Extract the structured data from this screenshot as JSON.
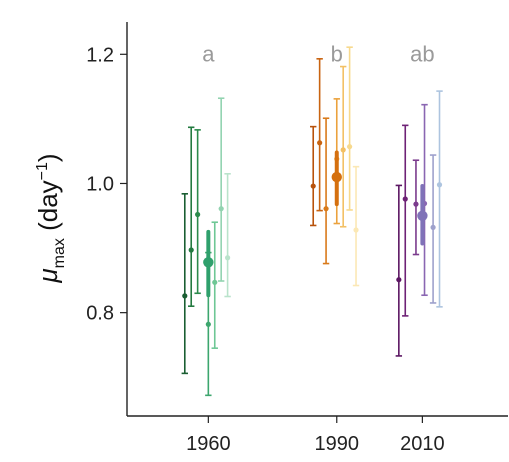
{
  "chart_data": {
    "type": "scatter",
    "ylabel": {
      "symbol": "μ",
      "subscript": "max",
      "unit_open": " (day",
      "unit_sup": "−1",
      "unit_close": ")"
    },
    "xlabel": "",
    "ylim": [
      0.64,
      1.25
    ],
    "yticks": [
      0.8,
      1.0,
      1.2
    ],
    "ytick_labels": [
      "0.8",
      "1.0",
      "1.2"
    ],
    "xlim": [
      1941,
      2030
    ],
    "xticks": [
      1960,
      1990,
      2010
    ],
    "xtick_labels": [
      "1960",
      "1990",
      "2010"
    ],
    "grid": false,
    "groups": [
      {
        "year": 1960,
        "letter": "a",
        "replicates": [
          {
            "x": 1954.5,
            "y": 0.826,
            "lo": 0.706,
            "hi": 0.984,
            "color": "#1a5e32"
          },
          {
            "x": 1956.0,
            "y": 0.897,
            "lo": 0.81,
            "hi": 1.087,
            "color": "#237a40"
          },
          {
            "x": 1957.5,
            "y": 0.952,
            "lo": 0.83,
            "hi": 1.083,
            "color": "#2b8a4b"
          },
          {
            "x": 1960.0,
            "y": 0.782,
            "lo": 0.672,
            "hi": 0.893,
            "color": "#3da66e"
          },
          {
            "x": 1961.5,
            "y": 0.847,
            "lo": 0.745,
            "hi": 0.94,
            "color": "#6ec795"
          },
          {
            "x": 1963.0,
            "y": 0.961,
            "lo": 0.849,
            "hi": 1.132,
            "color": "#92d3b0"
          },
          {
            "x": 1964.5,
            "y": 0.885,
            "lo": 0.825,
            "hi": 1.015,
            "color": "#b9e3cb"
          }
        ],
        "mean": {
          "x": 1960.0,
          "y": 0.878,
          "lo": 0.827,
          "hi": 0.925,
          "color": "#2fa06c"
        }
      },
      {
        "year": 1990,
        "letter": "b",
        "replicates": [
          {
            "x": 1984.5,
            "y": 0.996,
            "lo": 0.935,
            "hi": 1.088,
            "color": "#b8520b"
          },
          {
            "x": 1986.0,
            "y": 1.063,
            "lo": 0.958,
            "hi": 1.193,
            "color": "#c96411"
          },
          {
            "x": 1987.5,
            "y": 0.961,
            "lo": 0.876,
            "hi": 1.101,
            "color": "#d97a1a"
          },
          {
            "x": 1990.0,
            "y": 1.038,
            "lo": 0.938,
            "hi": 1.131,
            "color": "#eba23d"
          },
          {
            "x": 1991.5,
            "y": 1.052,
            "lo": 0.933,
            "hi": 1.181,
            "color": "#f3c064"
          },
          {
            "x": 1993.0,
            "y": 1.057,
            "lo": 0.959,
            "hi": 1.211,
            "color": "#f7d98d"
          },
          {
            "x": 1994.5,
            "y": 0.928,
            "lo": 0.842,
            "hi": 1.026,
            "color": "#fbe8b5"
          }
        ],
        "mean": {
          "x": 1990.0,
          "y": 1.01,
          "lo": 0.968,
          "hi": 1.048,
          "color": "#d5700f"
        }
      },
      {
        "year": 2010,
        "letter": "ab",
        "replicates": [
          {
            "x": 2004.5,
            "y": 0.851,
            "lo": 0.733,
            "hi": 0.997,
            "color": "#5c1763"
          },
          {
            "x": 2006.0,
            "y": 0.976,
            "lo": 0.795,
            "hi": 1.09,
            "color": "#6e2276"
          },
          {
            "x": 2008.5,
            "y": 0.968,
            "lo": 0.89,
            "hi": 1.036,
            "color": "#7b3b8d"
          },
          {
            "x": 2010.5,
            "y": 0.969,
            "lo": 0.827,
            "hi": 1.122,
            "color": "#8a66b2"
          },
          {
            "x": 2012.5,
            "y": 0.932,
            "lo": 0.815,
            "hi": 1.044,
            "color": "#9ea1cc"
          },
          {
            "x": 2014.0,
            "y": 0.998,
            "lo": 0.809,
            "hi": 1.143,
            "color": "#adc4df"
          }
        ],
        "mean": {
          "x": 2010.0,
          "y": 0.95,
          "lo": 0.907,
          "hi": 0.996,
          "color": "#7f72b8"
        }
      }
    ]
  }
}
